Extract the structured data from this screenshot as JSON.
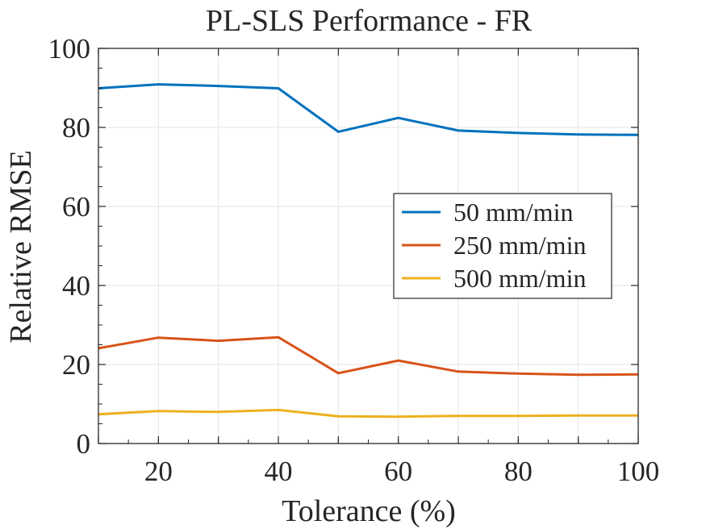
{
  "chart_data": {
    "type": "line",
    "title": "PL-SLS Performance - FR",
    "xlabel": "Tolerance (%)",
    "ylabel": "Relative RMSE",
    "xlim": [
      10,
      100
    ],
    "ylim": [
      0,
      100
    ],
    "xticks": [
      20,
      40,
      60,
      80,
      100
    ],
    "yticks": [
      0,
      20,
      40,
      60,
      80,
      100
    ],
    "grid": true,
    "legend_position": "right, middle",
    "x": [
      10,
      20,
      30,
      40,
      50,
      60,
      70,
      80,
      90,
      100
    ],
    "series": [
      {
        "name": "50 mm/min",
        "color": "#0072BD",
        "values": [
          89.9,
          90.9,
          90.5,
          89.9,
          78.9,
          82.4,
          79.2,
          78.6,
          78.2,
          78.1
        ]
      },
      {
        "name": "250 mm/min",
        "color": "#D95319",
        "values": [
          24.1,
          26.8,
          26.0,
          26.9,
          17.8,
          21.0,
          18.2,
          17.7,
          17.4,
          17.5
        ]
      },
      {
        "name": "500 mm/min",
        "color": "#EDB120",
        "values": [
          7.4,
          8.2,
          8.0,
          8.5,
          6.9,
          6.8,
          7.0,
          7.0,
          7.1,
          7.1
        ]
      }
    ]
  }
}
